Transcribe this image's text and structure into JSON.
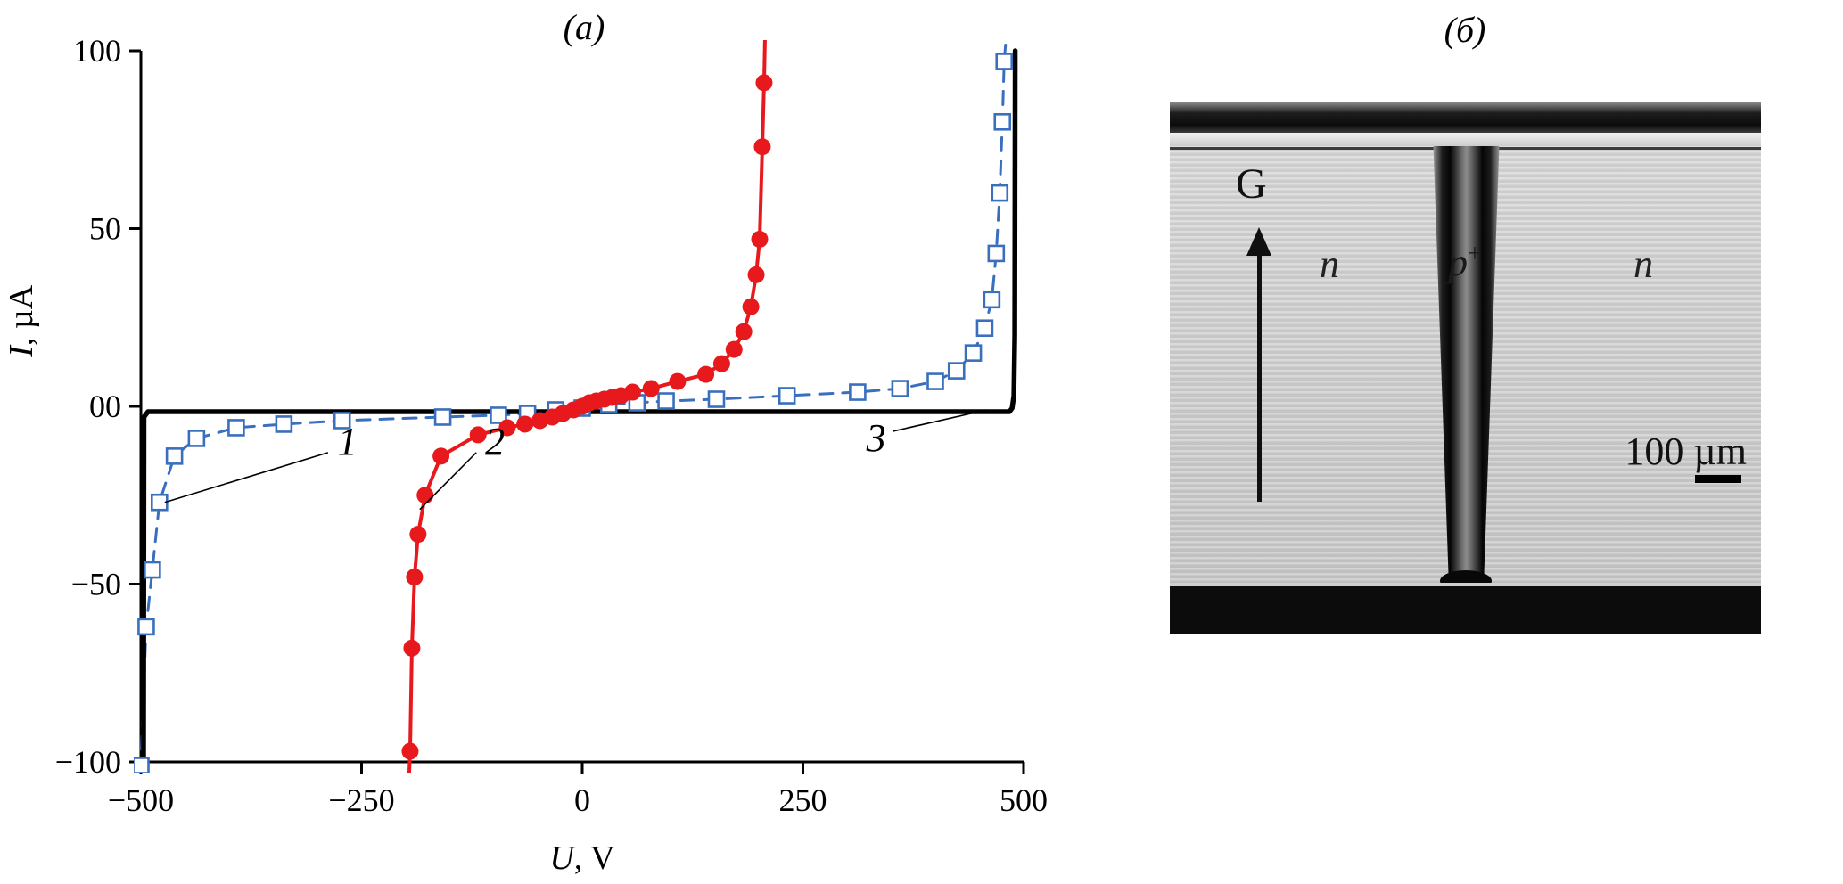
{
  "chart_data": {
    "type": "line",
    "title": "(a)",
    "xlabel": "U, V",
    "ylabel": "I, µA",
    "xlabel_parts": {
      "italic": "U",
      "rest": ", V"
    },
    "ylabel_parts": {
      "italic": "I",
      "rest": ", µA"
    },
    "xlim": [
      -500,
      500
    ],
    "ylim": [
      -100,
      100
    ],
    "xticks": [
      -500,
      -250,
      0,
      250,
      500
    ],
    "xtick_labels": [
      "−500",
      "−250",
      "0",
      "250",
      "500"
    ],
    "yticks": [
      -100,
      -50,
      0,
      50,
      100
    ],
    "ytick_labels": [
      "−100",
      "−50",
      "00",
      "50",
      "100"
    ],
    "grid": false,
    "legend_position": "none",
    "series": [
      {
        "name": "1",
        "color": "#3a6fbe",
        "line": "dashed",
        "marker": "open-square",
        "points": [
          [
            -500,
            -101
          ],
          [
            -494,
            -62
          ],
          [
            -487,
            -46
          ],
          [
            -479,
            -27
          ],
          [
            -462,
            -14
          ],
          [
            -437,
            -9
          ],
          [
            -392,
            -6
          ],
          [
            -338,
            -5
          ],
          [
            -272,
            -4
          ],
          [
            -158,
            -3
          ],
          [
            -95,
            -2.5
          ],
          [
            -62,
            -2
          ],
          [
            -30,
            -1
          ],
          [
            0,
            -0.5
          ],
          [
            30,
            0.5
          ],
          [
            62,
            1
          ],
          [
            95,
            1.5
          ],
          [
            152,
            2
          ],
          [
            232,
            3
          ],
          [
            312,
            4
          ],
          [
            360,
            5
          ],
          [
            400,
            7
          ],
          [
            424,
            10
          ],
          [
            443,
            15
          ],
          [
            456,
            22
          ],
          [
            464,
            30
          ],
          [
            469,
            43
          ],
          [
            473,
            60
          ],
          [
            476,
            80
          ],
          [
            478,
            97
          ]
        ],
        "line_pre": [
          [
            -500.5,
            -103
          ]
        ],
        "line_extra": [
          [
            480,
            103
          ]
        ]
      },
      {
        "name": "2",
        "color": "#e8191c",
        "line": "solid",
        "marker": "filled-circle",
        "points": [
          [
            -195,
            -97
          ],
          [
            -193,
            -68
          ],
          [
            -190,
            -48
          ],
          [
            -186,
            -36
          ],
          [
            -178,
            -25
          ],
          [
            -160,
            -14
          ],
          [
            -118,
            -8
          ],
          [
            -85,
            -6
          ],
          [
            -65,
            -5
          ],
          [
            -48,
            -4
          ],
          [
            -34,
            -3
          ],
          [
            -22,
            -2
          ],
          [
            -10,
            -1
          ],
          [
            0,
            0
          ],
          [
            8,
            1
          ],
          [
            16,
            1.5
          ],
          [
            25,
            2
          ],
          [
            34,
            2.5
          ],
          [
            44,
            3
          ],
          [
            57,
            4
          ],
          [
            78,
            5
          ],
          [
            108,
            7
          ],
          [
            140,
            9
          ],
          [
            158,
            12
          ],
          [
            172,
            16
          ],
          [
            183,
            21
          ],
          [
            191,
            28
          ],
          [
            197,
            37
          ],
          [
            201,
            47
          ],
          [
            204,
            73
          ],
          [
            206,
            91
          ]
        ],
        "line_pre": [
          [
            -196,
            -103
          ]
        ],
        "line_extra": [
          [
            207,
            103
          ]
        ]
      },
      {
        "name": "3",
        "color": "#000000",
        "line": "solid",
        "marker": "none",
        "points": [
          [
            -497,
            -100
          ],
          [
            -496.5,
            -3
          ],
          [
            -492,
            -1.5
          ],
          [
            484,
            -1.5
          ],
          [
            487,
            -0.5
          ],
          [
            489,
            3
          ],
          [
            490,
            20
          ],
          [
            490.5,
            100
          ]
        ],
        "line_pre": [
          [
            -497,
            -103
          ]
        ]
      }
    ],
    "annotations": [
      {
        "label": "1",
        "x": -266,
        "y": -10,
        "leader": [
          [
            -288,
            -13
          ],
          [
            -473,
            -27
          ]
        ]
      },
      {
        "label": "2",
        "x": -99,
        "y": -10,
        "leader": [
          [
            -120,
            -13
          ],
          [
            -184,
            -29
          ]
        ]
      },
      {
        "label": "3",
        "x": 333,
        "y": -9,
        "leader": [
          [
            352,
            -7
          ],
          [
            458,
            -1
          ]
        ]
      }
    ]
  },
  "panel_b": {
    "title": "(б)",
    "labels": {
      "gradient_axis": "G",
      "left_region": "n",
      "center_region_base": "p",
      "center_region_sup": "+",
      "right_region": "n",
      "scale": "100 µm"
    }
  }
}
